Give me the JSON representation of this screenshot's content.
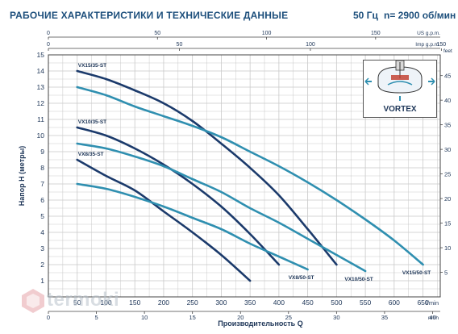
{
  "header": {
    "title": "РАБОЧИЕ ХАРАКТЕРИСТИКИ И ТЕХНИЧЕСКИЕ ДАННЫЕ",
    "frequency": "50 Гц",
    "speed": "n= 2900 об/мин"
  },
  "vortex_label": "VORTEX",
  "watermark": "termoki",
  "colors": {
    "dark_curve": "#1b3a6b",
    "teal_curve": "#2f8fb0",
    "grid": "#c9c9c9",
    "axis_text": "#1d3557",
    "title": "#1d4f7c"
  },
  "chart_data": {
    "type": "line",
    "xlabel": "Производительность Q",
    "ylabel": "Напор H (метры)",
    "x_main_unit": "l/min",
    "x_bottom_unit": "m³/h",
    "x_top_unit": "US g.p.m.",
    "x_imp_unit": "Imp g.p.m.",
    "y_right_unit": "feet",
    "xlim": [
      0,
      680
    ],
    "ylim": [
      0,
      15
    ],
    "y_right_lim": [
      0,
      49.2
    ],
    "grid": true,
    "x_ticks_lmin": [
      "50",
      "100",
      "150",
      "200",
      "250",
      "300",
      "350",
      "400",
      "450",
      "500",
      "550",
      "600",
      "650"
    ],
    "x_ticks_m3h": [
      "0",
      "5",
      "10",
      "15",
      "20",
      "25",
      "30",
      "35",
      "40"
    ],
    "x_ticks_usgpm": [
      "0",
      "50",
      "100",
      "150"
    ],
    "x_ticks_impgpm": [
      "0",
      "50",
      "100",
      "150"
    ],
    "y_ticks": [
      "1",
      "2",
      "3",
      "4",
      "5",
      "6",
      "7",
      "8",
      "9",
      "10",
      "11",
      "12",
      "13",
      "14",
      "15"
    ],
    "y_right_ticks": [
      "5",
      "10",
      "15",
      "20",
      "25",
      "30",
      "35",
      "40",
      "45"
    ],
    "series": [
      {
        "name": "VX8/35-ST",
        "style": "dark",
        "start_label": "VX8/35-ST",
        "end_label": "",
        "x": [
          50,
          100,
          150,
          200,
          250,
          300,
          350
        ],
        "y": [
          8.5,
          7.5,
          6.6,
          5.3,
          4.0,
          2.6,
          1.0
        ]
      },
      {
        "name": "VX10/35-ST",
        "style": "dark",
        "start_label": "VX10/35-ST",
        "end_label": "",
        "x": [
          50,
          100,
          150,
          200,
          250,
          300,
          350,
          400
        ],
        "y": [
          10.5,
          10.0,
          9.2,
          8.2,
          7.0,
          5.6,
          3.9,
          2.0
        ]
      },
      {
        "name": "VX15/35-ST",
        "style": "dark",
        "start_label": "VX15/35-ST",
        "end_label": "",
        "x": [
          50,
          100,
          150,
          200,
          250,
          300,
          350,
          400,
          450,
          500
        ],
        "y": [
          14.0,
          13.5,
          12.8,
          12.0,
          10.9,
          9.5,
          8.0,
          6.3,
          4.2,
          2.0
        ]
      },
      {
        "name": "VX8/50-ST",
        "style": "teal",
        "start_label": "",
        "end_label": "VX8/50-ST",
        "x": [
          50,
          100,
          150,
          200,
          250,
          300,
          350,
          400,
          450
        ],
        "y": [
          7.0,
          6.7,
          6.2,
          5.6,
          4.9,
          4.2,
          3.3,
          2.5,
          1.7
        ]
      },
      {
        "name": "VX10/50-ST",
        "style": "teal",
        "start_label": "",
        "end_label": "VX10/50-ST",
        "x": [
          50,
          100,
          150,
          200,
          250,
          300,
          350,
          400,
          450,
          500,
          550
        ],
        "y": [
          9.5,
          9.2,
          8.7,
          8.1,
          7.3,
          6.5,
          5.5,
          4.6,
          3.6,
          2.6,
          1.6
        ]
      },
      {
        "name": "VX15/50-ST",
        "style": "teal",
        "start_label": "",
        "end_label": "VX15/50-ST",
        "x": [
          50,
          100,
          150,
          200,
          250,
          300,
          350,
          400,
          450,
          500,
          550,
          600,
          650
        ],
        "y": [
          13.0,
          12.5,
          11.8,
          11.2,
          10.6,
          9.9,
          9.0,
          8.1,
          7.1,
          6.0,
          4.8,
          3.5,
          2.0
        ]
      }
    ]
  }
}
